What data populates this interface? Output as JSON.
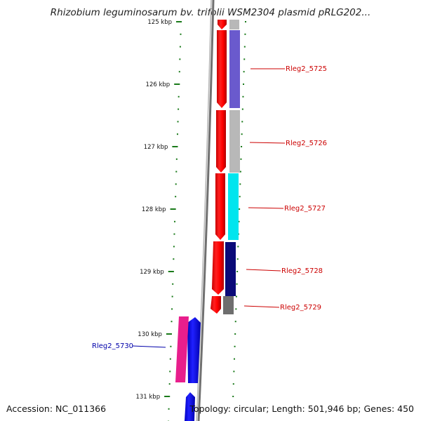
{
  "title": "Rhizobium leguminosarum bv. trifolii WSM2304 plasmid pRLG202...",
  "footer": {
    "accession": "Accession: NC_011366",
    "summary": "Topology: circular; Length: 501,946 bp; Genes: 450"
  },
  "scale": {
    "ticks": [
      {
        "label": "125 kbp",
        "value": 125
      },
      {
        "label": "126 kbp",
        "value": 126
      },
      {
        "label": "127 kbp",
        "value": 127
      },
      {
        "label": "128 kbp",
        "value": 128
      },
      {
        "label": "129 kbp",
        "value": 129
      },
      {
        "label": "130 kbp",
        "value": 130
      },
      {
        "label": "131 kbp",
        "value": 131
      }
    ]
  },
  "colors": {
    "tick": "#1a7a1a",
    "backbone": "#8a8a8a",
    "forward_label": "#cc0000",
    "reverse_label": "#0000aa",
    "cds": "#ff0000",
    "reverse_gene": "#0000ff"
  },
  "genes": [
    {
      "label": "Rleg2_5725",
      "strand": "forward",
      "color": "#6a5acd"
    },
    {
      "label": "Rleg2_5726",
      "strand": "forward",
      "color": "#b8b8b8"
    },
    {
      "label": "Rleg2_5727",
      "strand": "forward",
      "color": "#00e5ee"
    },
    {
      "label": "Rleg2_5728",
      "strand": "forward",
      "color": "#0a0a78"
    },
    {
      "label": "Rleg2_5729",
      "strand": "forward",
      "color": "#6e6e6e"
    },
    {
      "label": "Rleg2_5730",
      "strand": "reverse",
      "color": "#e81e8c"
    }
  ]
}
